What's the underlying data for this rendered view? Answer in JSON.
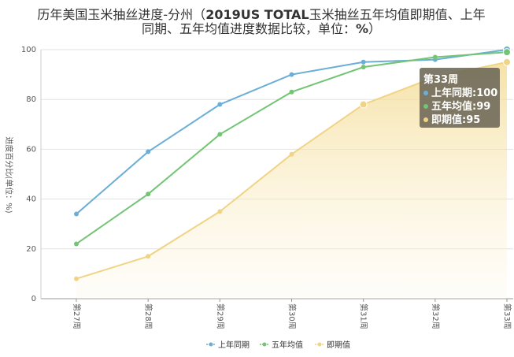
{
  "chart_data": {
    "type": "line",
    "title_line1_pre": "历年美国玉米抽丝进度-分州（",
    "title_line1_bold": "2019US TOTAL",
    "title_line1_post": "玉米抽丝五年均值即期值、上年",
    "title_line2_pre": "同期、五年均值进度数据比较，单位：",
    "title_line2_bold": "%",
    "title_line2_post": "）",
    "ylabel": "进度百分比(单位：%)",
    "ylim": [
      0,
      100
    ],
    "yticks": [
      0,
      20,
      40,
      60,
      80,
      100
    ],
    "categories": [
      "第27周",
      "第28周",
      "第29周",
      "第30周",
      "第31周",
      "第32周",
      "第33周"
    ],
    "grid": "horizontal",
    "legend_position": "bottom-center",
    "series": [
      {
        "name": "上年同期",
        "values": [
          34,
          59,
          78,
          90,
          95,
          96,
          100
        ],
        "color": "#6baed6"
      },
      {
        "name": "五年均值",
        "values": [
          22,
          42,
          66,
          83,
          93,
          97,
          99
        ],
        "color": "#74c476"
      },
      {
        "name": "即期值",
        "values": [
          8,
          17,
          35,
          58,
          78,
          89,
          95
        ],
        "color": "#f0d485",
        "area": true
      }
    ],
    "tooltip": {
      "header": "第33周",
      "rows": [
        {
          "label": "上年同期:",
          "value": "100"
        },
        {
          "label": "五年均值:",
          "value": "99"
        },
        {
          "label": "即期值:",
          "value": "95"
        }
      ]
    }
  }
}
